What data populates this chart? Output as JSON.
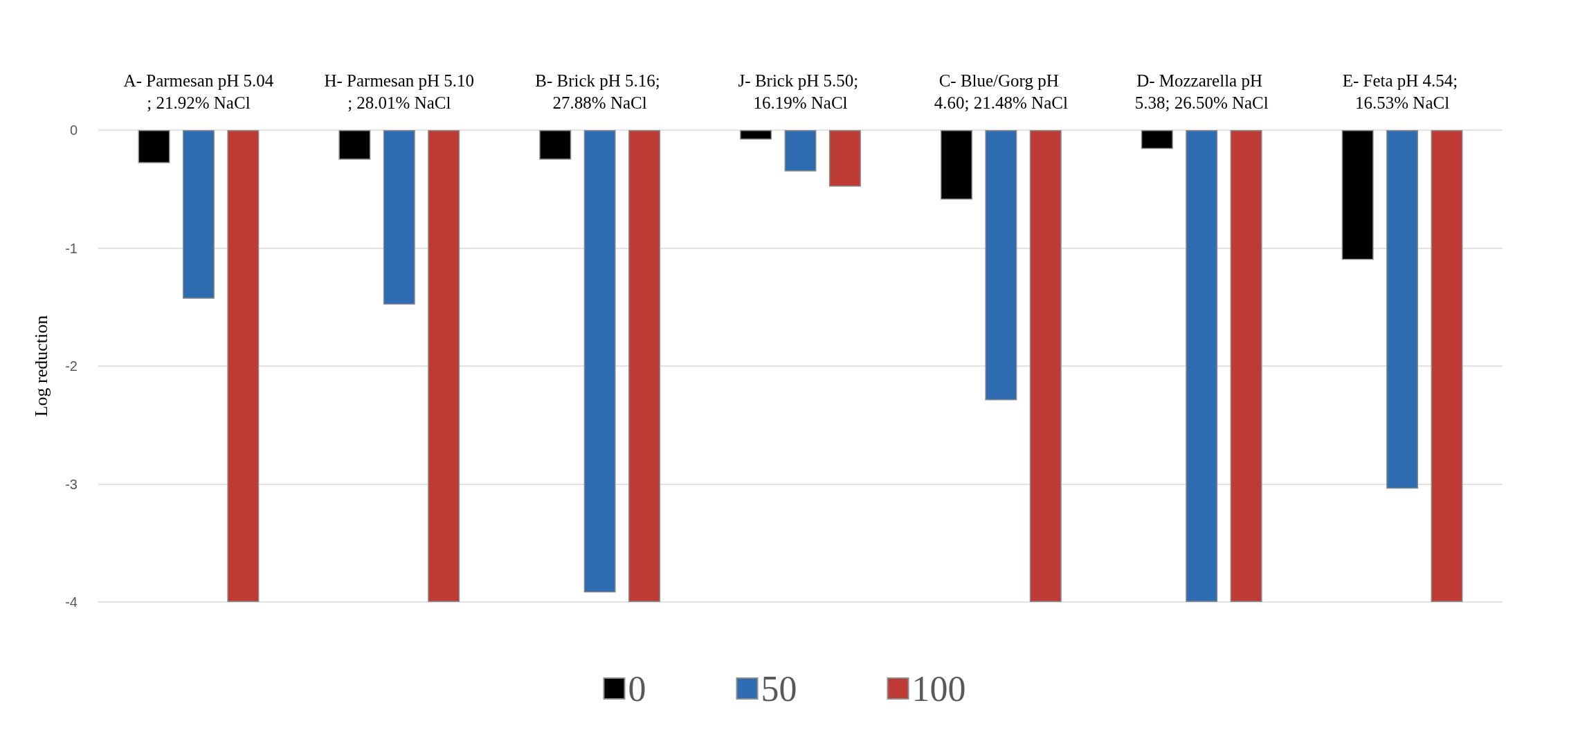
{
  "chart_data": {
    "type": "bar",
    "ylabel": "Log reduction",
    "categories": [
      "A- Parmesan pH 5.04; 21.92% NaCl",
      "H- Parmesan pH 5.10; 28.01% NaCl",
      "B- Brick pH 5.16; 27.88% NaCl",
      "J- Brick pH 5.50; 16.19% NaCl",
      "C- Blue/Gorg pH 4.60; 21.48% NaCl",
      "D- Mozzarella pH 5.38; 26.50% NaCl",
      "E- Feta pH 4.54; 16.53% NaCl"
    ],
    "series": [
      {
        "name": "0",
        "color": "#000000",
        "values": [
          -0.28,
          -0.25,
          -0.25,
          -0.08,
          -0.59,
          -0.16,
          -1.1
        ]
      },
      {
        "name": "50",
        "color": "#2e6bb0",
        "values": [
          -1.43,
          -1.48,
          -3.92,
          -0.35,
          -2.29,
          -4,
          -3.04
        ]
      },
      {
        "name": "100",
        "color": "#be3a34",
        "values": [
          -4,
          -4,
          -4,
          -0.48,
          -4,
          -4,
          -4
        ]
      }
    ],
    "ylim": [
      -4,
      0
    ],
    "yticks": [
      -4,
      -3,
      -2,
      -1,
      0
    ],
    "grid": "y",
    "legend": "bottom"
  }
}
